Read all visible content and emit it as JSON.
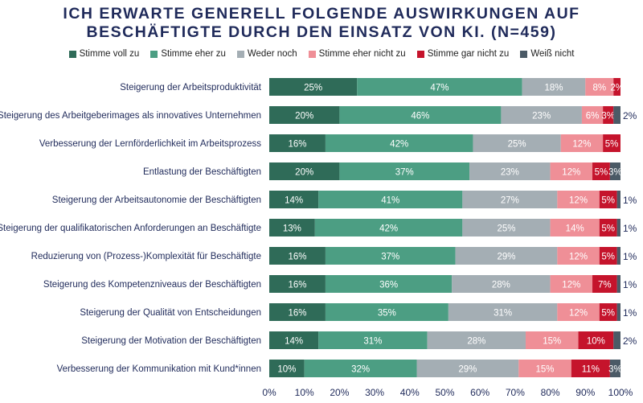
{
  "chart_data": {
    "type": "bar",
    "orientation": "horizontal",
    "stacked": true,
    "title_lines": [
      "ICH ERWARTE GENERELL FOLGENDE AUSWIRKUNGEN AUF",
      "BESCHÄFTIGTE DURCH DEN EINSATZ VON KI. (N=459)"
    ],
    "xlim": [
      0,
      100
    ],
    "xticks": [
      "0%",
      "10%",
      "20%",
      "30%",
      "40%",
      "50%",
      "60%",
      "70%",
      "80%",
      "90%",
      "100%"
    ],
    "grid": false,
    "legend_position": "top",
    "categories": [
      "Steigerung der Arbeitsproduktivität",
      "Steigerung des Arbeitgeberimages als innovatives Unternehmen",
      "Verbesserung der Lernförderlichkeit im Arbeitsprozess",
      "Entlastung der Beschäftigten",
      "Steigerung der Arbeitsautonomie der Beschäftigten",
      "Steigerung der qualifikatorischen Anforderungen an Beschäftigte",
      "Reduzierung von (Prozess-)Komplexität für Beschäftigte",
      "Steigerung des Kompetenzniveaus der Beschäftigten",
      "Steigerung der Qualität von Entscheidungen",
      "Steigerung der Motivation der Beschäftigten",
      "Verbesserung der Kommunikation mit Kund*innen"
    ],
    "series": [
      {
        "name": "Stimme voll zu",
        "color": "#2f6b58",
        "values": [
          25,
          20,
          16,
          20,
          14,
          13,
          16,
          16,
          16,
          14,
          10
        ]
      },
      {
        "name": "Stimme eher zu",
        "color": "#4c9e83",
        "values": [
          47,
          46,
          42,
          37,
          41,
          42,
          37,
          36,
          35,
          31,
          32
        ]
      },
      {
        "name": "Weder noch",
        "color": "#a4aeb4",
        "values": [
          18,
          23,
          25,
          23,
          27,
          25,
          29,
          28,
          31,
          28,
          29
        ]
      },
      {
        "name": "Stimme eher nicht zu",
        "color": "#ef8f97",
        "values": [
          8,
          6,
          12,
          12,
          12,
          14,
          12,
          12,
          12,
          15,
          15
        ]
      },
      {
        "name": "Stimme gar nicht zu",
        "color": "#c5142c",
        "values": [
          2,
          3,
          5,
          5,
          5,
          5,
          5,
          7,
          5,
          10,
          11
        ]
      },
      {
        "name": "Weiß nicht",
        "color": "#4b5a66",
        "values": [
          0,
          2,
          0,
          3,
          1,
          1,
          1,
          1,
          1,
          2,
          3
        ]
      }
    ]
  }
}
